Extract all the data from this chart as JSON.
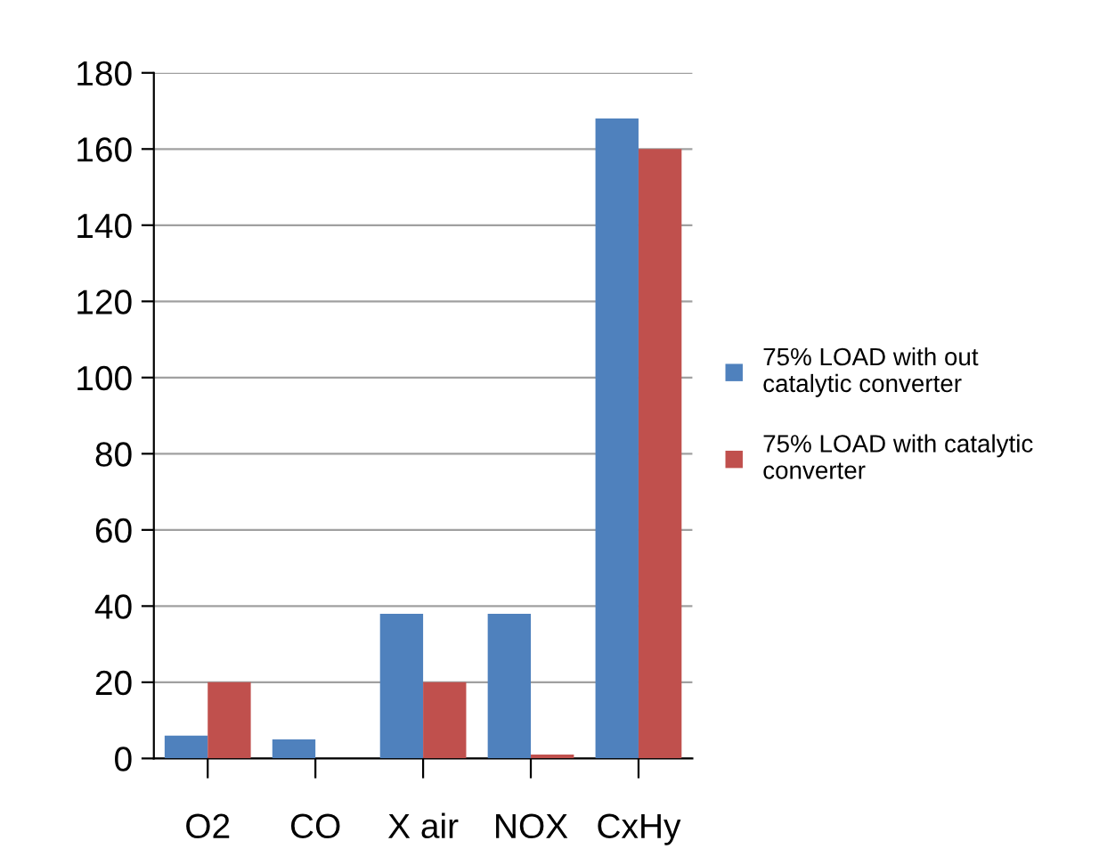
{
  "chart_data": {
    "type": "bar",
    "categories": [
      "O2",
      "CO",
      "X air",
      "NOX",
      "CxHy"
    ],
    "series": [
      {
        "name": "75% LOAD with out catalytic converter",
        "color": "#4f81bd",
        "values": [
          6,
          5,
          38,
          38,
          168
        ]
      },
      {
        "name": "75% LOAD with catalytic converter",
        "color": "#c0504d",
        "values": [
          20,
          0,
          20,
          1,
          160
        ]
      }
    ],
    "ylim": [
      0,
      180
    ],
    "yticks": [
      0,
      20,
      40,
      60,
      80,
      100,
      120,
      140,
      160,
      180
    ],
    "grid": "y",
    "legend": "right"
  }
}
